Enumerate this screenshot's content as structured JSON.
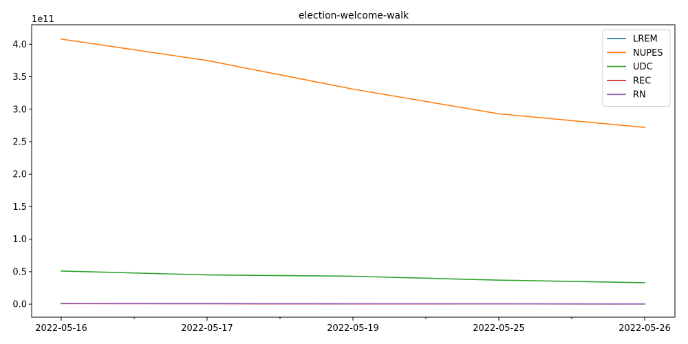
{
  "chart_data": {
    "type": "line",
    "title": "election-welcome-walk",
    "xlabel": "",
    "ylabel": "",
    "y_offset_label": "1e11",
    "y_scale": 100000000000,
    "categories": [
      "2022-05-16",
      "2022-05-17",
      "2022-05-19",
      "2022-05-25",
      "2022-05-26"
    ],
    "x_minor_ticks": 4,
    "ylim": [
      -0.2,
      4.3
    ],
    "y_ticks": [
      0.0,
      0.5,
      1.0,
      1.5,
      2.0,
      2.5,
      3.0,
      3.5,
      4.0
    ],
    "y_tick_labels": [
      "0.0",
      "0.5",
      "1.0",
      "1.5",
      "2.0",
      "2.5",
      "3.0",
      "3.5",
      "4.0"
    ],
    "grid": false,
    "legend_position": "top-right",
    "series": [
      {
        "name": "LREM",
        "color": "#1f77b4",
        "values": [
          0.01,
          0.01,
          0.005,
          0.005,
          0.003
        ]
      },
      {
        "name": "NUPES",
        "color": "#ff7f0e",
        "values": [
          4.08,
          3.75,
          3.31,
          2.93,
          2.72
        ]
      },
      {
        "name": "UDC",
        "color": "#2ca02c",
        "values": [
          0.51,
          0.45,
          0.43,
          0.37,
          0.33
        ]
      },
      {
        "name": "REC",
        "color": "#d62728",
        "values": [
          0.008,
          0.007,
          0.005,
          0.004,
          0.003
        ]
      },
      {
        "name": "RN",
        "color": "#9467bd",
        "values": [
          0.012,
          0.011,
          0.008,
          0.006,
          0.005
        ]
      }
    ]
  }
}
